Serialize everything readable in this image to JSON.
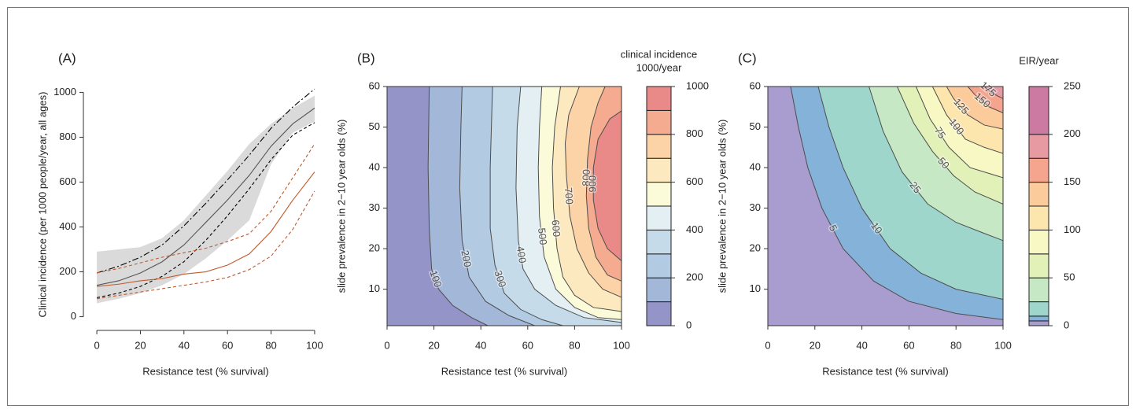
{
  "chart_data": [
    {
      "type": "line",
      "label": "(A)",
      "xlabel": "Resistance test (% survival)",
      "ylabel": "Clinical incidence (per 1000 people/year, all ages)",
      "x": [
        0,
        10,
        20,
        30,
        40,
        50,
        60,
        70,
        80,
        90,
        100
      ],
      "xlim": [
        -4,
        104
      ],
      "ylim": [
        -40,
        1040
      ],
      "xticks": [
        0,
        20,
        40,
        60,
        80,
        100
      ],
      "yticks": [
        0,
        200,
        400,
        600,
        800,
        1000
      ],
      "band": {
        "color": "#dadada",
        "lower": [
          60,
          80,
          105,
          140,
          190,
          260,
          340,
          430,
          680,
          820,
          870
        ],
        "upper": [
          290,
          300,
          310,
          350,
          430,
          540,
          650,
          770,
          860,
          930,
          985
        ]
      },
      "series": [
        {
          "color": "#555555",
          "dash": "solid",
          "values": [
            140,
            160,
            195,
            245,
            320,
            420,
            520,
            630,
            760,
            860,
            930
          ]
        },
        {
          "color": "#000000",
          "dash": "dashed",
          "values": [
            85,
            105,
            135,
            180,
            245,
            340,
            450,
            570,
            700,
            810,
            865
          ]
        },
        {
          "color": "#000000",
          "dash": "dotdash",
          "values": [
            195,
            225,
            265,
            320,
            405,
            505,
            610,
            720,
            840,
            935,
            1015
          ]
        },
        {
          "color": "#c1592e",
          "dash": "solid",
          "values": [
            135,
            145,
            160,
            170,
            190,
            200,
            230,
            280,
            380,
            520,
            645
          ]
        },
        {
          "color": "#c1592e",
          "dash": "dashed",
          "values": [
            195,
            215,
            240,
            265,
            285,
            305,
            335,
            370,
            470,
            620,
            770
          ]
        },
        {
          "color": "#c1592e",
          "dash": "dashed",
          "values": [
            80,
            95,
            110,
            125,
            140,
            155,
            175,
            210,
            270,
            390,
            560
          ]
        }
      ]
    },
    {
      "type": "contour",
      "label": "(B)",
      "xlabel": "Resistance test (% survival)",
      "ylabel": "slide prevalence in 2−10 year olds (%)",
      "xlim": [
        0,
        100
      ],
      "ylim": [
        1,
        60
      ],
      "xticks": [
        0,
        20,
        40,
        60,
        80,
        100
      ],
      "yticks": [
        10,
        20,
        30,
        40,
        50,
        60
      ],
      "line_color": "#4d4d4d",
      "colorbar": {
        "title": [
          "clinical incidence",
          "1000/year"
        ],
        "levels": [
          0,
          100,
          200,
          300,
          400,
          500,
          600,
          700,
          800,
          900,
          1000
        ],
        "colors": [
          "#9594c8",
          "#a3b7d8",
          "#b2cbe2",
          "#c6dbea",
          "#e3eff3",
          "#fbfbd9",
          "#fde9bf",
          "#fbd3a6",
          "#f4ab8f",
          "#ea8a88"
        ],
        "ticks": [
          0,
          200,
          400,
          600,
          800,
          1000
        ]
      },
      "contours": [
        {
          "level": 100,
          "x": [
            43,
            36,
            28,
            22,
            19,
            18,
            17.5,
            18
          ],
          "y": [
            1,
            3,
            6,
            10,
            15,
            25,
            40,
            60
          ]
        },
        {
          "level": 200,
          "x": [
            63,
            52,
            42,
            35,
            32,
            31,
            31.5,
            32
          ],
          "y": [
            1,
            3.5,
            7,
            13,
            22,
            35,
            50,
            60
          ]
        },
        {
          "level": 300,
          "x": [
            75,
            66,
            57,
            50,
            46,
            44,
            44,
            45
          ],
          "y": [
            1,
            2.5,
            5,
            9,
            16,
            25,
            40,
            60
          ]
        },
        {
          "level": 400,
          "x": [
            100,
            84,
            72,
            63,
            58,
            56,
            55,
            55.5,
            57
          ],
          "y": [
            1.8,
            3,
            6,
            10,
            15,
            22,
            35,
            50,
            60
          ]
        },
        {
          "level": 500,
          "x": [
            100,
            90,
            80,
            72,
            67,
            65,
            64.5,
            65,
            66
          ],
          "y": [
            2.5,
            3,
            5.5,
            10,
            18,
            28,
            40,
            50,
            60
          ]
        },
        {
          "level": 600,
          "x": [
            100,
            88,
            80,
            75,
            72.5,
            71,
            70.5,
            71.5,
            74
          ],
          "y": [
            4.5,
            5.5,
            8.5,
            13,
            20,
            30,
            40,
            50,
            60
          ]
        },
        {
          "level": 700,
          "x": [
            100,
            92,
            86,
            81,
            78,
            76.5,
            76,
            77.5,
            82
          ],
          "y": [
            8,
            10,
            14,
            20,
            28,
            38,
            46,
            53,
            60
          ]
        },
        {
          "level": 800,
          "x": [
            100,
            94,
            89,
            86,
            85,
            85.5,
            87,
            90,
            93
          ],
          "y": [
            12,
            13.5,
            18,
            25,
            33,
            42,
            50,
            56,
            60
          ]
        },
        {
          "level": 900,
          "x": [
            100,
            94,
            90,
            88,
            88,
            90,
            95,
            100
          ],
          "y": [
            17,
            20,
            25,
            32,
            40,
            47,
            52,
            54
          ]
        }
      ]
    },
    {
      "type": "contour",
      "label": "(C)",
      "xlabel": "Resistance test (% survival)",
      "ylabel": "slide prevalence in 2−10 year olds (%)",
      "xlim": [
        0,
        100
      ],
      "ylim": [
        1,
        60
      ],
      "xticks": [
        0,
        20,
        40,
        60,
        80,
        100
      ],
      "yticks": [
        10,
        20,
        30,
        40,
        50,
        60
      ],
      "line_color": "#4d4d4d",
      "colorbar": {
        "title": [
          "EIR/year"
        ],
        "levels": [
          0,
          5,
          10,
          25,
          50,
          75,
          100,
          125,
          150,
          175,
          200,
          250
        ],
        "colors": [
          "#a99dd0",
          "#84b2d8",
          "#9ed6cb",
          "#c6e8c4",
          "#e2f1b8",
          "#f7f8c3",
          "#fde6ae",
          "#fbcb9c",
          "#f5a48e",
          "#e79aa2",
          "#cc7aa1"
        ],
        "ticks": [
          0,
          50,
          100,
          150,
          200,
          250
        ]
      },
      "contours": [
        {
          "level": 5,
          "x": [
            100,
            80,
            60,
            45,
            32,
            23,
            17,
            13,
            9.7
          ],
          "y": [
            2.5,
            4,
            7,
            12,
            20,
            30,
            40,
            50,
            60
          ]
        },
        {
          "level": 10,
          "x": [
            100,
            80,
            65,
            52,
            40,
            32,
            26,
            21.4
          ],
          "y": [
            7.5,
            10,
            14,
            20,
            30,
            40,
            50,
            60
          ]
        },
        {
          "level": 25,
          "x": [
            100,
            91,
            80,
            68,
            57,
            49,
            43
          ],
          "y": [
            22,
            24,
            26.5,
            31,
            39,
            49,
            60
          ]
        },
        {
          "level": 50,
          "x": [
            100,
            88,
            79,
            70,
            62,
            55
          ],
          "y": [
            31,
            34,
            38,
            44,
            51,
            60
          ]
        },
        {
          "level": 75,
          "x": [
            100,
            86,
            77,
            69,
            63
          ],
          "y": [
            37.5,
            40,
            45,
            52,
            60
          ]
        },
        {
          "level": 100,
          "x": [
            100,
            92,
            84,
            76,
            70
          ],
          "y": [
            43.5,
            45,
            47,
            53,
            60
          ]
        },
        {
          "level": 125,
          "x": [
            100,
            92,
            85,
            79,
            76
          ],
          "y": [
            49.5,
            50.5,
            53,
            57,
            60
          ]
        },
        {
          "level": 150,
          "x": [
            100,
            94,
            88,
            85
          ],
          "y": [
            53.5,
            55,
            58,
            60
          ]
        },
        {
          "level": 175,
          "x": [
            100,
            95,
            92
          ],
          "y": [
            57,
            58.5,
            60
          ]
        }
      ]
    }
  ]
}
